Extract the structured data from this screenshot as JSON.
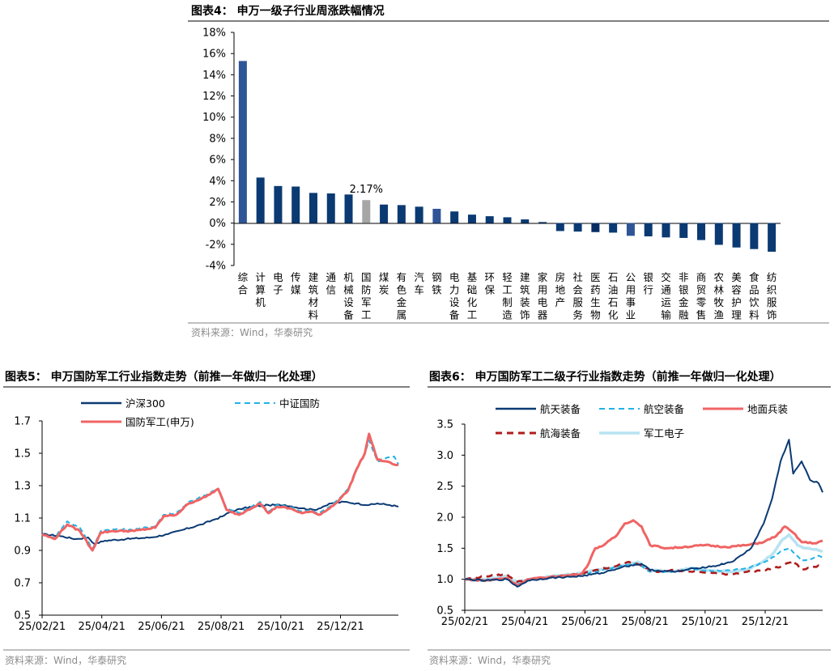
{
  "colors": {
    "navy": "#0b3a73",
    "blue": "#2f5597",
    "red": "#f06464",
    "darkred": "#b01c1c",
    "cyan": "#20b2e6",
    "lightblue": "#b7e3f2",
    "gray": "#a6a6a6"
  },
  "footnote": "资料来源：Wind，华泰研究",
  "chart_data": [
    {
      "id": "fig4",
      "type": "bar",
      "title": "图表4：  申万一级子行业周涨跌幅情况",
      "ylim": [
        -4,
        18
      ],
      "yticks": [
        -4,
        -2,
        0,
        2,
        4,
        6,
        8,
        10,
        12,
        14,
        16,
        18
      ],
      "ytick_labels": [
        "-4%",
        "-2%",
        "0%",
        "2%",
        "4%",
        "6%",
        "8%",
        "10%",
        "12%",
        "14%",
        "16%",
        "18%"
      ],
      "categories": [
        "综合",
        "计算机",
        "电子",
        "传媒",
        "建筑材料",
        "通信",
        "机械设备",
        "国防军工",
        "煤炭",
        "有色金属",
        "汽车",
        "钢铁",
        "电力设备",
        "基础化工",
        "环保",
        "轻工制造",
        "建筑装饰",
        "家用电器",
        "房地产",
        "社会服务",
        "医药生物",
        "石油石化",
        "公用事业",
        "银行",
        "交通运输",
        "非银金融",
        "商贸零售",
        "农林牧渔",
        "美容护理",
        "食品饮料",
        "纺织服饰"
      ],
      "values": [
        15.3,
        4.3,
        3.5,
        3.45,
        2.85,
        2.8,
        2.7,
        2.17,
        1.75,
        1.7,
        1.55,
        1.35,
        1.1,
        0.8,
        0.65,
        0.55,
        0.35,
        0.1,
        -0.75,
        -0.8,
        -0.85,
        -0.9,
        -1.2,
        -1.25,
        -1.35,
        -1.4,
        -1.6,
        -2.05,
        -2.3,
        -2.45,
        -2.7
      ],
      "highlight": "国防军工",
      "annotation": "2.17%",
      "source": "资料来源：Wind，华泰研究"
    },
    {
      "id": "fig5",
      "type": "line",
      "title": "图表5：  申万国防军工行业指数走势（前推一年做归一化处理）",
      "ylim": [
        0.5,
        1.7
      ],
      "yticks": [
        0.5,
        0.7,
        0.9,
        1.1,
        1.3,
        1.5,
        1.7
      ],
      "ytick_labels": [
        "0.5",
        "0.7",
        "0.9",
        "1.1",
        "1.3",
        "1.5",
        "1.7"
      ],
      "xtick_labels": [
        "25/02/21",
        "25/04/21",
        "25/06/21",
        "25/08/21",
        "25/10/21",
        "25/12/21"
      ],
      "legend": [
        "沪深300",
        "中证国防",
        "国防军工(申万)"
      ],
      "series": [
        {
          "name": "沪深300",
          "style": "solid",
          "color": "#0b3a73",
          "keys": [
            [
              0,
              1.0
            ],
            [
              8,
              0.99
            ],
            [
              16,
              0.97
            ],
            [
              22,
              0.98
            ],
            [
              25,
              0.94
            ],
            [
              30,
              0.96
            ],
            [
              40,
              0.97
            ],
            [
              52,
              0.98
            ],
            [
              60,
              1.0
            ],
            [
              68,
              1.03
            ],
            [
              76,
              1.06
            ],
            [
              82,
              1.09
            ],
            [
              86,
              1.11
            ],
            [
              90,
              1.14
            ],
            [
              96,
              1.16
            ],
            [
              100,
              1.17
            ],
            [
              108,
              1.18
            ],
            [
              116,
              1.18
            ],
            [
              124,
              1.16
            ],
            [
              130,
              1.15
            ],
            [
              134,
              1.17
            ],
            [
              138,
              1.19
            ],
            [
              144,
              1.2
            ],
            [
              150,
              1.19
            ],
            [
              156,
              1.18
            ],
            [
              160,
              1.19
            ],
            [
              166,
              1.18
            ],
            [
              170,
              1.17
            ]
          ]
        },
        {
          "name": "中证国防",
          "style": "dashed",
          "color": "#20b2e6",
          "keys": [
            [
              0,
              1.0
            ],
            [
              6,
              0.98
            ],
            [
              12,
              1.08
            ],
            [
              18,
              1.04
            ],
            [
              24,
              0.91
            ],
            [
              28,
              1.02
            ],
            [
              34,
              1.03
            ],
            [
              44,
              1.03
            ],
            [
              54,
              1.05
            ],
            [
              58,
              1.12
            ],
            [
              64,
              1.13
            ],
            [
              70,
              1.2
            ],
            [
              78,
              1.24
            ],
            [
              84,
              1.28
            ],
            [
              88,
              1.16
            ],
            [
              94,
              1.13
            ],
            [
              98,
              1.16
            ],
            [
              104,
              1.2
            ],
            [
              108,
              1.14
            ],
            [
              112,
              1.18
            ],
            [
              118,
              1.17
            ],
            [
              124,
              1.14
            ],
            [
              128,
              1.15
            ],
            [
              132,
              1.13
            ],
            [
              136,
              1.16
            ],
            [
              140,
              1.2
            ],
            [
              146,
              1.28
            ],
            [
              150,
              1.4
            ],
            [
              154,
              1.5
            ],
            [
              156,
              1.58
            ],
            [
              160,
              1.45
            ],
            [
              164,
              1.47
            ],
            [
              168,
              1.48
            ],
            [
              170,
              1.43
            ]
          ]
        },
        {
          "name": "国防军工(申万)",
          "style": "solid",
          "color": "#f06464",
          "keys": [
            [
              0,
              1.0
            ],
            [
              6,
              0.97
            ],
            [
              12,
              1.06
            ],
            [
              18,
              1.02
            ],
            [
              24,
              0.9
            ],
            [
              28,
              1.01
            ],
            [
              34,
              1.02
            ],
            [
              44,
              1.02
            ],
            [
              54,
              1.04
            ],
            [
              58,
              1.11
            ],
            [
              64,
              1.12
            ],
            [
              70,
              1.19
            ],
            [
              78,
              1.23
            ],
            [
              84,
              1.28
            ],
            [
              88,
              1.15
            ],
            [
              94,
              1.12
            ],
            [
              98,
              1.15
            ],
            [
              104,
              1.19
            ],
            [
              108,
              1.13
            ],
            [
              112,
              1.17
            ],
            [
              118,
              1.16
            ],
            [
              124,
              1.13
            ],
            [
              128,
              1.14
            ],
            [
              132,
              1.12
            ],
            [
              136,
              1.15
            ],
            [
              140,
              1.19
            ],
            [
              146,
              1.27
            ],
            [
              150,
              1.4
            ],
            [
              154,
              1.5
            ],
            [
              156,
              1.62
            ],
            [
              160,
              1.46
            ],
            [
              164,
              1.45
            ],
            [
              168,
              1.43
            ],
            [
              170,
              1.43
            ]
          ]
        }
      ],
      "source": "资料来源：Wind，华泰研究"
    },
    {
      "id": "fig6",
      "type": "line",
      "title": "图表6：  申万国防军工二级子行业指数走势（前推一年做归一化处理）",
      "ylim": [
        0.5,
        3.5
      ],
      "yticks": [
        0.5,
        1.0,
        1.5,
        2.0,
        2.5,
        3.0,
        3.5
      ],
      "ytick_labels": [
        "0.5",
        "1.0",
        "1.5",
        "2.0",
        "2.5",
        "3.0",
        "3.5"
      ],
      "xtick_labels": [
        "25/02/21",
        "25/04/21",
        "25/06/21",
        "25/08/21",
        "25/10/21",
        "25/12/21"
      ],
      "legend": [
        "航天装备",
        "航空装备",
        "地面兵装",
        "航海装备",
        "军工电子"
      ],
      "series": [
        {
          "name": "航天装备",
          "style": "solid",
          "color": "#0b3a73",
          "keys": [
            [
              0,
              1.0
            ],
            [
              10,
              0.98
            ],
            [
              20,
              1.0
            ],
            [
              25,
              0.88
            ],
            [
              30,
              0.98
            ],
            [
              40,
              1.02
            ],
            [
              55,
              1.05
            ],
            [
              65,
              1.1
            ],
            [
              75,
              1.2
            ],
            [
              84,
              1.25
            ],
            [
              88,
              1.15
            ],
            [
              100,
              1.12
            ],
            [
              110,
              1.18
            ],
            [
              120,
              1.22
            ],
            [
              128,
              1.3
            ],
            [
              136,
              1.5
            ],
            [
              142,
              1.9
            ],
            [
              146,
              2.3
            ],
            [
              150,
              2.9
            ],
            [
              154,
              3.25
            ],
            [
              156,
              2.7
            ],
            [
              160,
              2.9
            ],
            [
              164,
              2.6
            ],
            [
              168,
              2.55
            ],
            [
              170,
              2.4
            ]
          ]
        },
        {
          "name": "航空装备",
          "style": "dashed",
          "color": "#20b2e6",
          "keys": [
            [
              0,
              1.0
            ],
            [
              10,
              0.97
            ],
            [
              20,
              1.02
            ],
            [
              25,
              0.92
            ],
            [
              30,
              0.98
            ],
            [
              45,
              1.05
            ],
            [
              55,
              1.08
            ],
            [
              62,
              1.12
            ],
            [
              72,
              1.2
            ],
            [
              82,
              1.25
            ],
            [
              88,
              1.12
            ],
            [
              98,
              1.12
            ],
            [
              108,
              1.16
            ],
            [
              118,
              1.13
            ],
            [
              128,
              1.15
            ],
            [
              136,
              1.2
            ],
            [
              144,
              1.3
            ],
            [
              150,
              1.45
            ],
            [
              154,
              1.5
            ],
            [
              160,
              1.3
            ],
            [
              164,
              1.32
            ],
            [
              168,
              1.38
            ],
            [
              170,
              1.35
            ]
          ]
        },
        {
          "name": "地面兵装",
          "style": "solid",
          "color": "#f06464",
          "keys": [
            [
              0,
              1.0
            ],
            [
              10,
              0.98
            ],
            [
              20,
              1.02
            ],
            [
              25,
              0.9
            ],
            [
              30,
              1.0
            ],
            [
              45,
              1.05
            ],
            [
              55,
              1.08
            ],
            [
              58,
              1.2
            ],
            [
              62,
              1.5
            ],
            [
              66,
              1.55
            ],
            [
              72,
              1.7
            ],
            [
              76,
              1.9
            ],
            [
              80,
              1.95
            ],
            [
              84,
              1.85
            ],
            [
              88,
              1.55
            ],
            [
              96,
              1.5
            ],
            [
              104,
              1.52
            ],
            [
              114,
              1.55
            ],
            [
              124,
              1.52
            ],
            [
              134,
              1.55
            ],
            [
              142,
              1.6
            ],
            [
              148,
              1.7
            ],
            [
              152,
              1.85
            ],
            [
              156,
              1.75
            ],
            [
              160,
              1.6
            ],
            [
              166,
              1.58
            ],
            [
              170,
              1.62
            ]
          ]
        },
        {
          "name": "航海装备",
          "style": "dashed",
          "color": "#b01c1c",
          "keys": [
            [
              0,
              1.0
            ],
            [
              10,
              1.05
            ],
            [
              20,
              1.08
            ],
            [
              25,
              0.96
            ],
            [
              30,
              1.0
            ],
            [
              45,
              1.05
            ],
            [
              55,
              1.08
            ],
            [
              62,
              1.15
            ],
            [
              70,
              1.2
            ],
            [
              78,
              1.28
            ],
            [
              84,
              1.22
            ],
            [
              90,
              1.12
            ],
            [
              98,
              1.15
            ],
            [
              108,
              1.12
            ],
            [
              118,
              1.1
            ],
            [
              126,
              1.08
            ],
            [
              134,
              1.12
            ],
            [
              142,
              1.15
            ],
            [
              150,
              1.2
            ],
            [
              156,
              1.3
            ],
            [
              160,
              1.15
            ],
            [
              166,
              1.2
            ],
            [
              170,
              1.23
            ]
          ]
        },
        {
          "name": "军工电子",
          "style": "solid",
          "color": "#b7e3f2",
          "keys": [
            [
              0,
              1.0
            ],
            [
              10,
              1.0
            ],
            [
              20,
              1.05
            ],
            [
              25,
              0.95
            ],
            [
              30,
              1.0
            ],
            [
              45,
              1.06
            ],
            [
              55,
              1.1
            ],
            [
              62,
              1.14
            ],
            [
              72,
              1.2
            ],
            [
              82,
              1.28
            ],
            [
              88,
              1.15
            ],
            [
              98,
              1.12
            ],
            [
              108,
              1.18
            ],
            [
              118,
              1.14
            ],
            [
              126,
              1.12
            ],
            [
              134,
              1.15
            ],
            [
              140,
              1.25
            ],
            [
              146,
              1.4
            ],
            [
              150,
              1.6
            ],
            [
              154,
              1.72
            ],
            [
              158,
              1.55
            ],
            [
              162,
              1.5
            ],
            [
              166,
              1.48
            ],
            [
              170,
              1.45
            ]
          ]
        }
      ],
      "source": "资料来源：Wind，华泰研究"
    }
  ]
}
